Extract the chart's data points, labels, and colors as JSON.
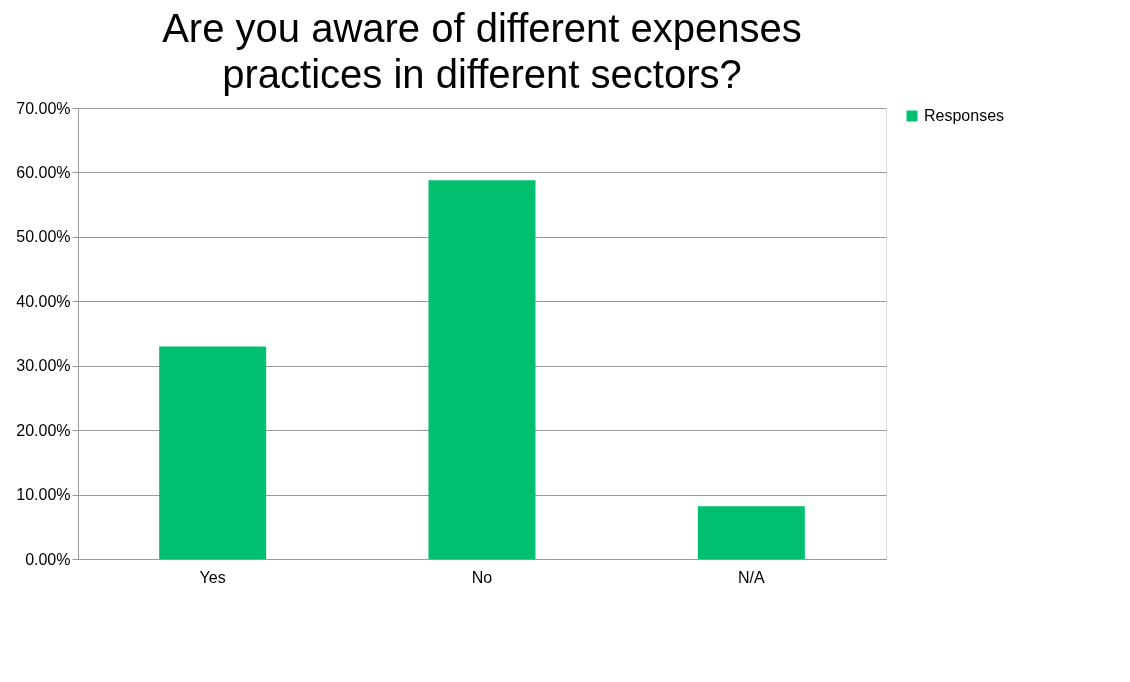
{
  "chart_data": {
    "type": "bar",
    "title": "Are you aware of different expenses practices in different sectors?",
    "categories": [
      "Yes",
      "No",
      "N/A"
    ],
    "series": [
      {
        "name": "Responses",
        "color": "#00bf6f",
        "values": [
          33.0,
          58.8,
          8.2
        ]
      }
    ],
    "ylim": [
      0,
      70
    ],
    "yticks": [
      {
        "value": 0,
        "label": "0.00%"
      },
      {
        "value": 10,
        "label": "10.00%"
      },
      {
        "value": 20,
        "label": "20.00%"
      },
      {
        "value": 30,
        "label": "30.00%"
      },
      {
        "value": 40,
        "label": "40.00%"
      },
      {
        "value": 50,
        "label": "50.00%"
      },
      {
        "value": 60,
        "label": "60.00%"
      },
      {
        "value": 70,
        "label": "70.00%"
      }
    ],
    "grid": "y",
    "legend": "right"
  }
}
